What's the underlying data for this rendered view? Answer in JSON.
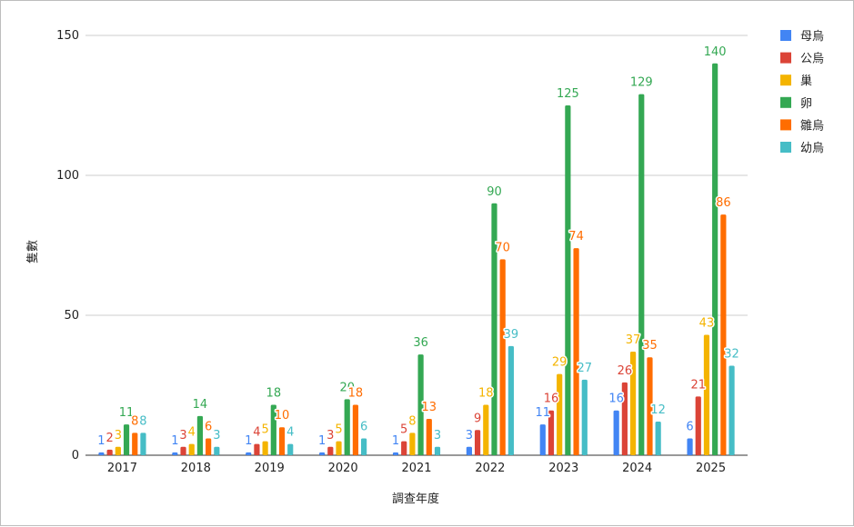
{
  "chart_data": {
    "type": "bar",
    "xlabel": "調查年度",
    "ylabel": "隻數",
    "ylim": [
      0,
      150
    ],
    "yticks": [
      0,
      50,
      100,
      150
    ],
    "grid": true,
    "legend_position": "right",
    "categories": [
      "2017",
      "2018",
      "2019",
      "2020",
      "2021",
      "2022",
      "2023",
      "2024",
      "2025"
    ],
    "series": [
      {
        "name": "母烏",
        "color": "#4285f4",
        "values": [
          1,
          1,
          1,
          1,
          1,
          3,
          11,
          16,
          6
        ]
      },
      {
        "name": "公烏",
        "color": "#db4437",
        "values": [
          2,
          3,
          4,
          3,
          5,
          9,
          16,
          26,
          21
        ]
      },
      {
        "name": "巢",
        "color": "#f4b400",
        "values": [
          3,
          4,
          5,
          5,
          8,
          18,
          29,
          37,
          43
        ]
      },
      {
        "name": "卵",
        "color": "#34a853",
        "values": [
          11,
          14,
          18,
          20,
          36,
          90,
          125,
          129,
          140
        ]
      },
      {
        "name": "雛烏",
        "color": "#ff6d01",
        "values": [
          8,
          6,
          10,
          18,
          13,
          70,
          74,
          35,
          86
        ]
      },
      {
        "name": "幼烏",
        "color": "#46bdc6",
        "values": [
          8,
          3,
          4,
          6,
          3,
          39,
          27,
          12,
          32
        ]
      }
    ]
  }
}
